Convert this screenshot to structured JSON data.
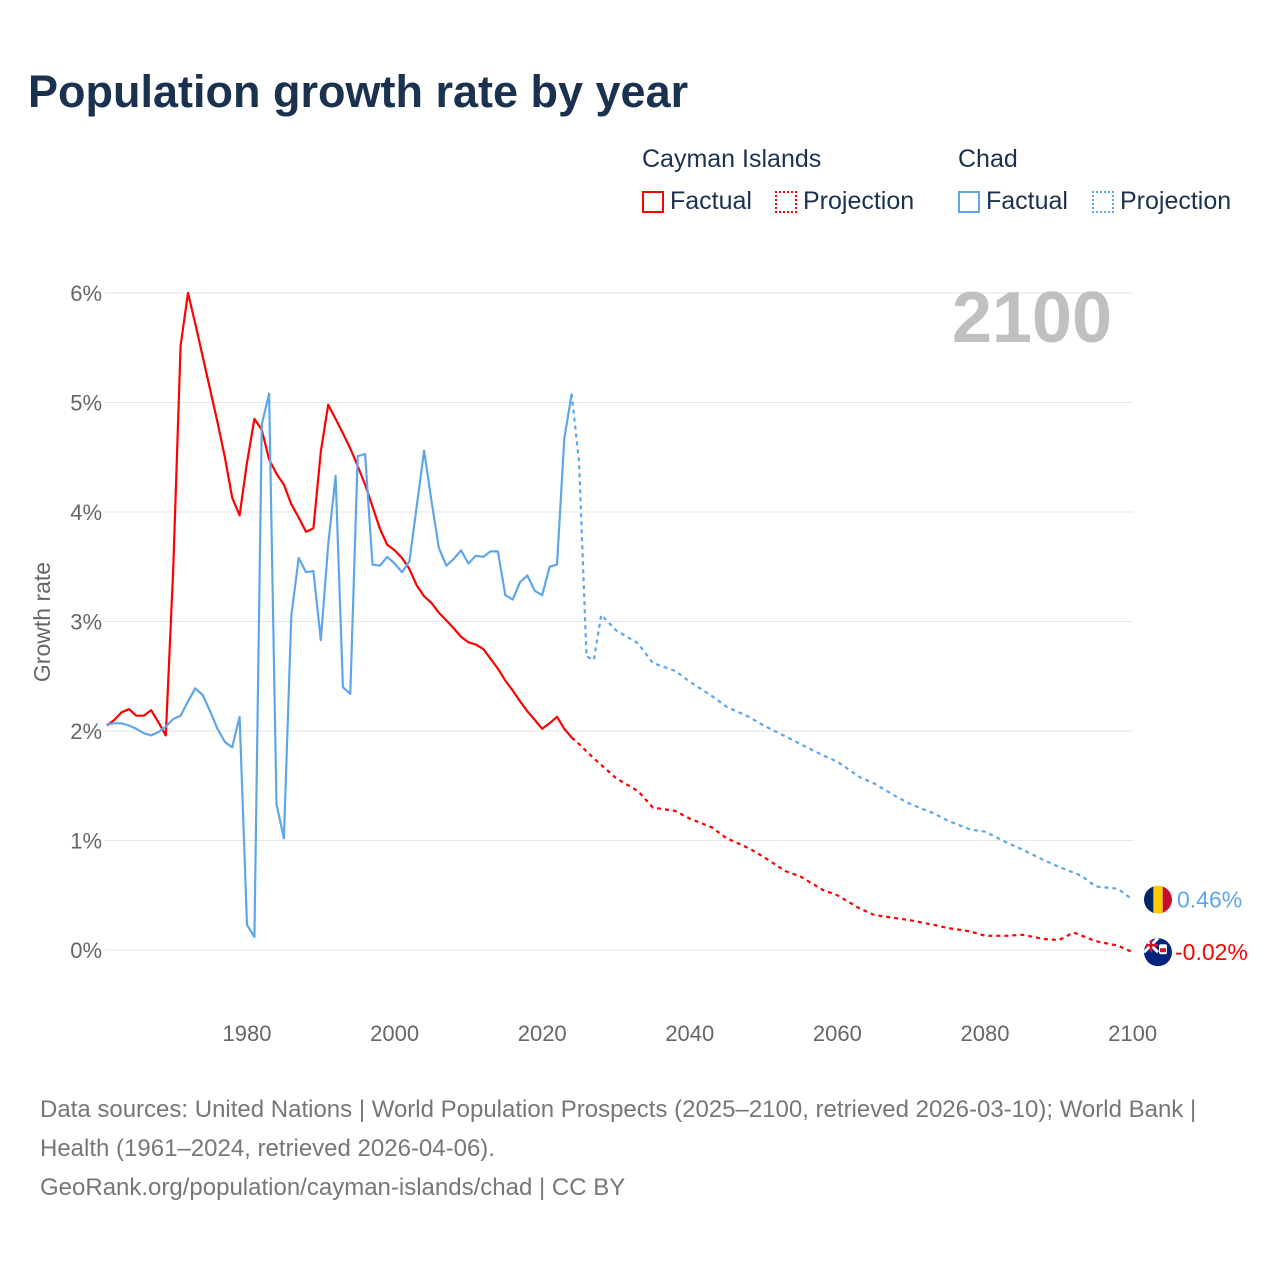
{
  "title": "Population growth rate by year",
  "legend": {
    "groups": [
      {
        "name": "Cayman Islands",
        "color": "#ff0000",
        "items": [
          "Factual",
          "Projection"
        ]
      },
      {
        "name": "Chad",
        "color": "#5ea6ec",
        "items": [
          "Factual",
          "Projection"
        ]
      }
    ]
  },
  "year_watermark": "2100",
  "footer": {
    "line1": "Data sources: United Nations | World Population Prospects (2025–2100, retrieved 2026-03-10); World Bank | Health (1961–2024, retrieved 2026-04-06).",
    "line2": "GeoRank.org/population/cayman-islands/chad | CC BY"
  },
  "chart_data": {
    "type": "line",
    "title": "Population growth rate by year",
    "xlabel": "",
    "ylabel": "Growth rate",
    "xlim": [
      1961,
      2100
    ],
    "ylim": [
      -0.6,
      6.2
    ],
    "xticks": [
      1980,
      2000,
      2020,
      2040,
      2060,
      2080,
      2100
    ],
    "yticks": [
      0,
      1,
      2,
      3,
      4,
      5,
      6
    ],
    "ytick_labels": [
      "0%",
      "1%",
      "2%",
      "3%",
      "4%",
      "5%",
      "6%"
    ],
    "series": [
      {
        "name": "Cayman Islands",
        "kind": "Factual",
        "color": "#ff0000",
        "end_label": "-0.02%",
        "x": [
          1961,
          1962,
          1963,
          1964,
          1965,
          1966,
          1967,
          1968,
          1969,
          1970,
          1971,
          1972,
          1973,
          1974,
          1975,
          1976,
          1977,
          1978,
          1979,
          1980,
          1981,
          1982,
          1983,
          1984,
          1985,
          1986,
          1987,
          1988,
          1989,
          1990,
          1991,
          1992,
          1993,
          1994,
          1995,
          1996,
          1997,
          1998,
          1999,
          2000,
          2001,
          2002,
          2003,
          2004,
          2005,
          2006,
          2007,
          2008,
          2009,
          2010,
          2011,
          2012,
          2013,
          2014,
          2015,
          2016,
          2017,
          2018,
          2019,
          2020,
          2021,
          2022,
          2023,
          2024
        ],
        "y": [
          2.05,
          2.1,
          2.17,
          2.2,
          2.14,
          2.14,
          2.19,
          2.08,
          1.96,
          3.47,
          5.52,
          6.0,
          5.72,
          5.42,
          5.12,
          4.82,
          4.5,
          4.13,
          3.97,
          4.45,
          4.85,
          4.75,
          4.48,
          4.35,
          4.25,
          4.07,
          3.95,
          3.82,
          3.85,
          4.55,
          4.98,
          4.85,
          4.72,
          4.58,
          4.42,
          4.25,
          4.05,
          3.85,
          3.7,
          3.65,
          3.58,
          3.48,
          3.33,
          3.23,
          3.17,
          3.08,
          3.01,
          2.94,
          2.86,
          2.81,
          2.79,
          2.75,
          2.66,
          2.57,
          2.46,
          2.37,
          2.27,
          2.18,
          2.1,
          2.02,
          2.07,
          2.13,
          2.02,
          1.94
        ]
      },
      {
        "name": "Cayman Islands",
        "kind": "Projection",
        "color": "#ff0000",
        "x": [
          2024,
          2025,
          2027,
          2030,
          2033,
          2035,
          2038,
          2040,
          2043,
          2045,
          2048,
          2050,
          2053,
          2055,
          2058,
          2060,
          2063,
          2065,
          2068,
          2070,
          2073,
          2075,
          2078,
          2080,
          2083,
          2085,
          2088,
          2090,
          2092,
          2095,
          2098,
          2100
        ],
        "y": [
          1.94,
          1.88,
          1.75,
          1.57,
          1.45,
          1.3,
          1.27,
          1.2,
          1.12,
          1.02,
          0.93,
          0.85,
          0.72,
          0.67,
          0.55,
          0.5,
          0.38,
          0.32,
          0.29,
          0.27,
          0.23,
          0.2,
          0.17,
          0.13,
          0.13,
          0.14,
          0.1,
          0.09,
          0.16,
          0.08,
          0.04,
          -0.02
        ]
      },
      {
        "name": "Chad",
        "kind": "Factual",
        "color": "#5ea6ec",
        "end_label": "0.46%",
        "x": [
          1961,
          1962,
          1963,
          1964,
          1965,
          1966,
          1967,
          1968,
          1969,
          1970,
          1971,
          1972,
          1973,
          1974,
          1975,
          1976,
          1977,
          1978,
          1979,
          1980,
          1981,
          1982,
          1983,
          1984,
          1985,
          1986,
          1987,
          1988,
          1989,
          1990,
          1991,
          1992,
          1993,
          1994,
          1995,
          1996,
          1997,
          1998,
          1999,
          2000,
          2001,
          2002,
          2003,
          2004,
          2005,
          2006,
          2007,
          2008,
          2009,
          2010,
          2011,
          2012,
          2013,
          2014,
          2015,
          2016,
          2017,
          2018,
          2019,
          2020,
          2021,
          2022,
          2023,
          2024
        ],
        "y": [
          2.06,
          2.07,
          2.07,
          2.05,
          2.02,
          1.98,
          1.96,
          1.99,
          2.04,
          2.11,
          2.14,
          2.27,
          2.39,
          2.33,
          2.18,
          2.02,
          1.9,
          1.85,
          2.13,
          0.23,
          0.12,
          4.8,
          5.08,
          1.33,
          1.02,
          3.05,
          3.58,
          3.45,
          3.46,
          2.83,
          3.7,
          4.33,
          2.4,
          2.34,
          4.51,
          4.53,
          3.52,
          3.51,
          3.59,
          3.53,
          3.45,
          3.55,
          4.05,
          4.56,
          4.1,
          3.67,
          3.51,
          3.57,
          3.65,
          3.53,
          3.6,
          3.59,
          3.64,
          3.64,
          3.24,
          3.2,
          3.36,
          3.42,
          3.28,
          3.24,
          3.5,
          3.52,
          4.67,
          5.08
        ]
      },
      {
        "name": "Chad",
        "kind": "Projection",
        "color": "#5ea6ec",
        "x": [
          2024,
          2025,
          2026,
          2027,
          2028,
          2030,
          2033,
          2035,
          2038,
          2040,
          2043,
          2045,
          2048,
          2050,
          2053,
          2055,
          2058,
          2060,
          2063,
          2065,
          2068,
          2070,
          2073,
          2075,
          2078,
          2080,
          2083,
          2085,
          2088,
          2090,
          2093,
          2095,
          2098,
          2100
        ],
        "y": [
          5.08,
          4.45,
          2.68,
          2.65,
          3.06,
          2.92,
          2.8,
          2.62,
          2.55,
          2.45,
          2.32,
          2.22,
          2.13,
          2.05,
          1.95,
          1.88,
          1.78,
          1.72,
          1.58,
          1.52,
          1.4,
          1.33,
          1.25,
          1.18,
          1.1,
          1.08,
          0.98,
          0.92,
          0.82,
          0.76,
          0.68,
          0.58,
          0.56,
          0.46
        ]
      }
    ]
  }
}
